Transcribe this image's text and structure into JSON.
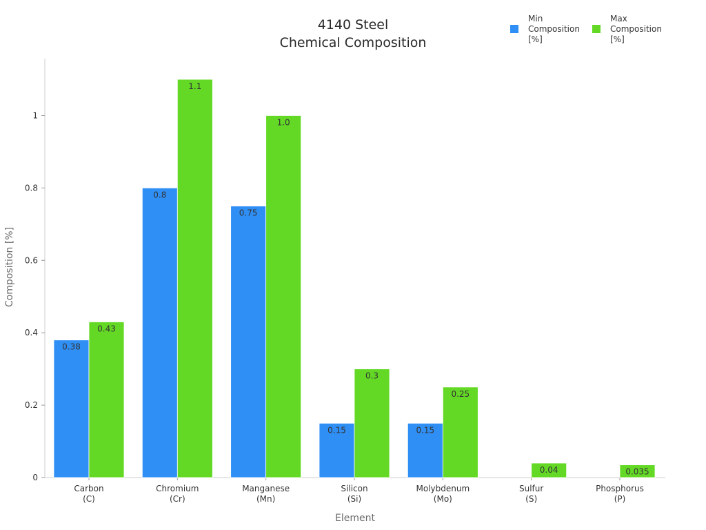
{
  "chart_data": {
    "type": "bar",
    "title_lines": [
      "4140 Steel",
      "Chemical Composition"
    ],
    "xlabel": "Element",
    "ylabel": "Composition [%]",
    "ylim": [
      0,
      1.1
    ],
    "yticks": [
      0,
      0.2,
      0.4,
      0.6,
      0.8,
      1
    ],
    "ytick_labels": [
      "0",
      "0.2",
      "0.4",
      "0.6",
      "0.8",
      "1"
    ],
    "categories": [
      [
        "Carbon",
        "(C)"
      ],
      [
        "Chromium",
        "(Cr)"
      ],
      [
        "Manganese",
        "(Mn)"
      ],
      [
        "Silicon",
        "(Si)"
      ],
      [
        "Molybdenum",
        "(Mo)"
      ],
      [
        "Sulfur",
        "(S)"
      ],
      [
        "Phosphorus",
        "(P)"
      ]
    ],
    "series": [
      {
        "name_lines": [
          "Min",
          "Composition",
          "[%]"
        ],
        "color": "#2f8ff5",
        "values": [
          0.38,
          0.8,
          0.75,
          0.15,
          0.15,
          null,
          null
        ],
        "labels": [
          "0.38",
          "0.8",
          "0.75",
          "0.15",
          "0.15",
          "",
          ""
        ]
      },
      {
        "name_lines": [
          "Max",
          "Composition",
          "[%]"
        ],
        "color": "#63d926",
        "values": [
          0.43,
          1.1,
          1.0,
          0.3,
          0.25,
          0.04,
          0.035
        ],
        "labels": [
          "0.43",
          "1.1",
          "1.0",
          "0.3",
          "0.25",
          "0.04",
          "0.035"
        ]
      }
    ],
    "grid": false,
    "legend_position": "top-right"
  }
}
